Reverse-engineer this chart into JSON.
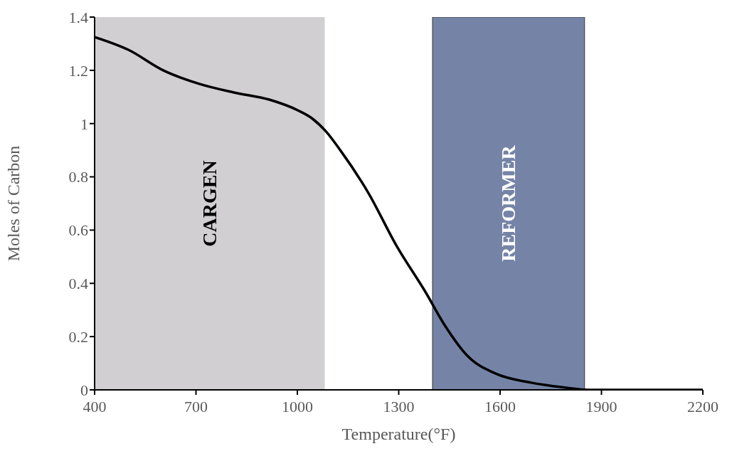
{
  "chart_data": {
    "type": "line",
    "xlabel": "Temperature(°F)",
    "ylabel": "Moles of Carbon",
    "x": [
      400,
      500,
      603,
      708,
      812,
      917,
      1001,
      1043,
      1085,
      1127,
      1210,
      1294,
      1378,
      1440,
      1503,
      1587,
      1692,
      1796,
      1859,
      2200
    ],
    "series": [
      {
        "color": "#000000",
        "values": [
          1.325,
          1.277,
          1.2,
          1.15,
          1.117,
          1.09,
          1.05,
          1.02,
          0.97,
          0.9,
          0.74,
          0.54,
          0.37,
          0.235,
          0.128,
          0.061,
          0.027,
          0.008,
          0,
          0
        ]
      }
    ],
    "xlim": [
      400,
      2200
    ],
    "xticks": [
      400,
      700,
      1000,
      1300,
      1600,
      1900,
      2200
    ],
    "ylim": [
      0,
      1.4
    ],
    "yticks": [
      0,
      0.2,
      0.4,
      0.6,
      0.8,
      1,
      1.2,
      1.4
    ],
    "bands": [
      {
        "axis": "x",
        "from": 400,
        "to": 1080,
        "label": "CARGEN",
        "color": "#d1cfd1"
      },
      {
        "axis": "x",
        "from": 1400,
        "to": 1850,
        "label": "REFORMER",
        "color": "#7584a6"
      }
    ],
    "marker": "none",
    "line_style": "solid"
  }
}
